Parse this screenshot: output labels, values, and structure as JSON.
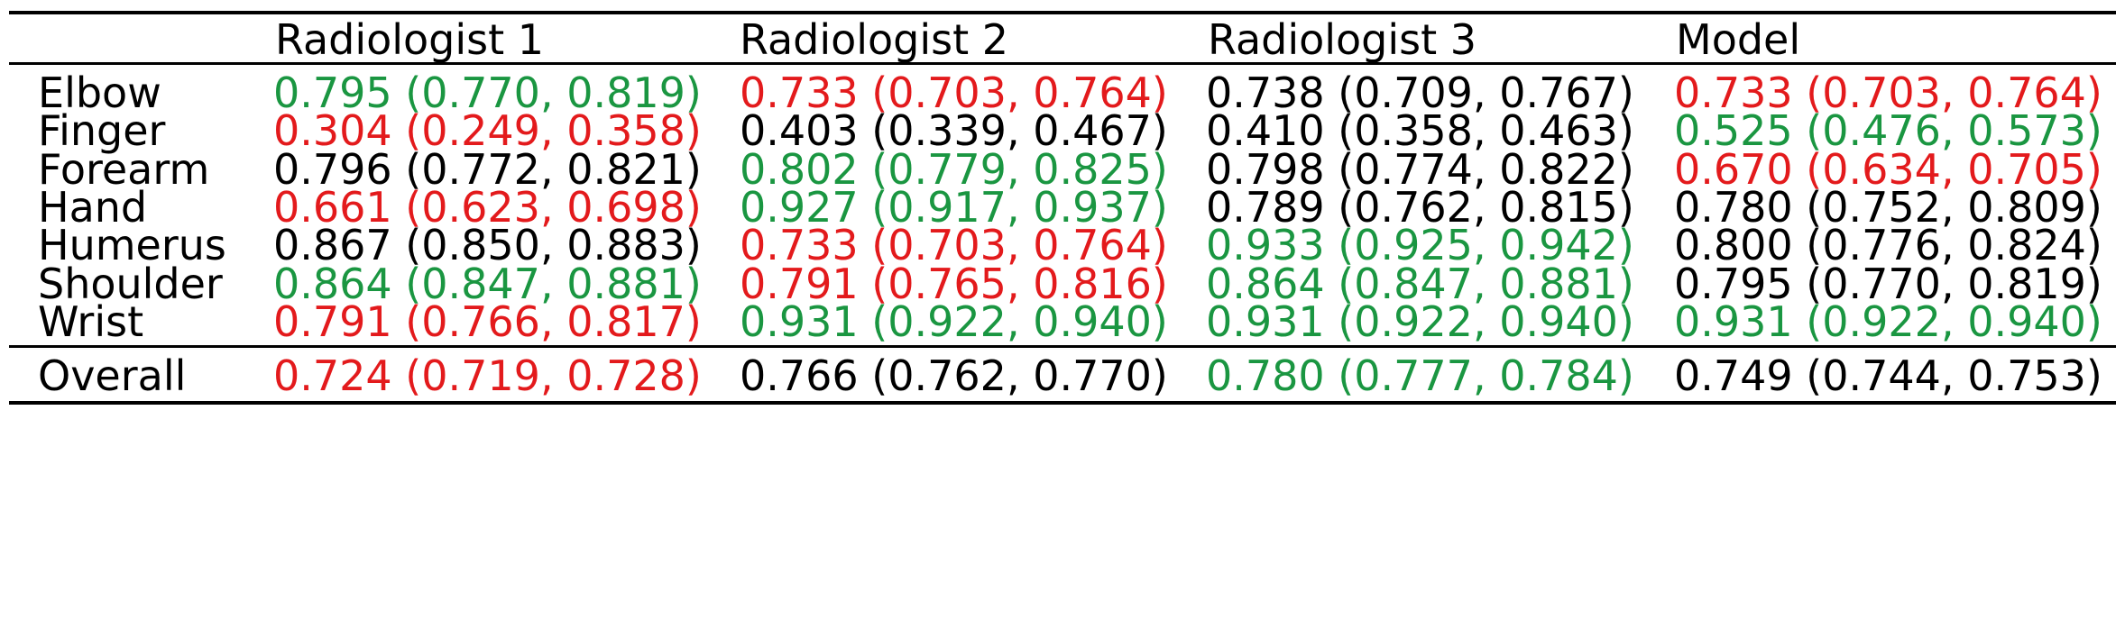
{
  "colors": {
    "best": "#1a9641",
    "worst": "#e31a1c",
    "neutral": "#000000"
  },
  "header": [
    "",
    "Radiologist 1",
    "Radiologist 2",
    "Radiologist 3",
    "Model"
  ],
  "rows": [
    {
      "label": "Elbow",
      "cells": [
        {
          "text": "0.795 (0.770, 0.819)",
          "status": "best"
        },
        {
          "text": "0.733 (0.703, 0.764)",
          "status": "worst"
        },
        {
          "text": "0.738 (0.709, 0.767)",
          "status": "neutral"
        },
        {
          "text": "0.733 (0.703, 0.764)",
          "status": "worst"
        }
      ]
    },
    {
      "label": "Finger",
      "cells": [
        {
          "text": "0.304 (0.249, 0.358)",
          "status": "worst"
        },
        {
          "text": "0.403 (0.339, 0.467)",
          "status": "neutral"
        },
        {
          "text": "0.410 (0.358, 0.463)",
          "status": "neutral"
        },
        {
          "text": "0.525 (0.476, 0.573)",
          "status": "best"
        }
      ]
    },
    {
      "label": "Forearm",
      "cells": [
        {
          "text": "0.796 (0.772, 0.821)",
          "status": "neutral"
        },
        {
          "text": "0.802 (0.779, 0.825)",
          "status": "best"
        },
        {
          "text": "0.798 (0.774, 0.822)",
          "status": "neutral"
        },
        {
          "text": "0.670 (0.634, 0.705)",
          "status": "worst"
        }
      ]
    },
    {
      "label": "Hand",
      "cells": [
        {
          "text": "0.661 (0.623, 0.698)",
          "status": "worst"
        },
        {
          "text": "0.927 (0.917, 0.937)",
          "status": "best"
        },
        {
          "text": "0.789 (0.762, 0.815)",
          "status": "neutral"
        },
        {
          "text": "0.780 (0.752, 0.809)",
          "status": "neutral"
        }
      ]
    },
    {
      "label": "Humerus",
      "cells": [
        {
          "text": "0.867 (0.850, 0.883)",
          "status": "neutral"
        },
        {
          "text": "0.733 (0.703, 0.764)",
          "status": "worst"
        },
        {
          "text": "0.933 (0.925, 0.942)",
          "status": "best"
        },
        {
          "text": "0.800 (0.776, 0.824)",
          "status": "neutral"
        }
      ]
    },
    {
      "label": "Shoulder",
      "cells": [
        {
          "text": "0.864 (0.847, 0.881)",
          "status": "best"
        },
        {
          "text": "0.791 (0.765, 0.816)",
          "status": "worst"
        },
        {
          "text": "0.864 (0.847, 0.881)",
          "status": "best"
        },
        {
          "text": "0.795 (0.770, 0.819)",
          "status": "neutral"
        }
      ]
    },
    {
      "label": "Wrist",
      "cells": [
        {
          "text": "0.791 (0.766, 0.817)",
          "status": "worst"
        },
        {
          "text": "0.931 (0.922, 0.940)",
          "status": "best"
        },
        {
          "text": "0.931 (0.922, 0.940)",
          "status": "best"
        },
        {
          "text": "0.931 (0.922, 0.940)",
          "status": "best"
        }
      ]
    }
  ],
  "overall": {
    "label": "Overall",
    "cells": [
      {
        "text": "0.724 (0.719, 0.728)",
        "status": "worst"
      },
      {
        "text": "0.766 (0.762, 0.770)",
        "status": "neutral"
      },
      {
        "text": "0.780 (0.777, 0.784)",
        "status": "best"
      },
      {
        "text": "0.749 (0.744, 0.753)",
        "status": "neutral"
      }
    ]
  }
}
